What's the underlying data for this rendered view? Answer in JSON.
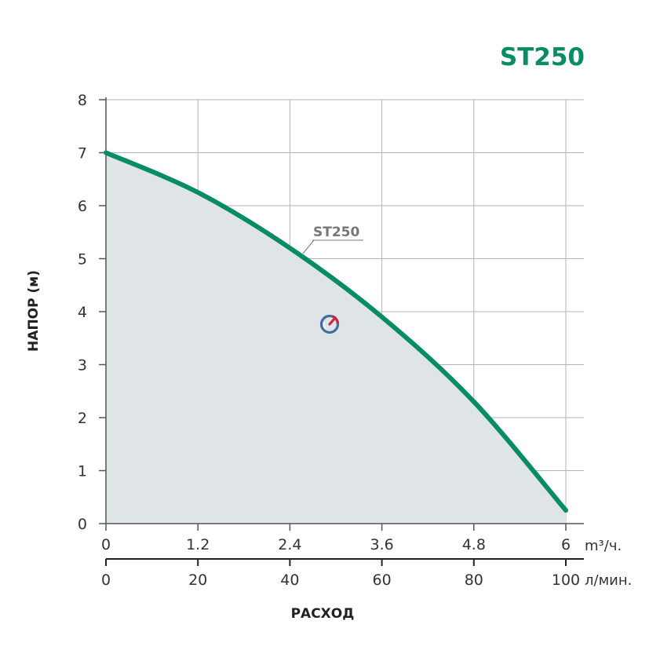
{
  "chart_data": {
    "type": "area",
    "title": "ST250",
    "ylabel": "НАПОР (м)",
    "xlabel": "РАСХОД",
    "ylim": [
      0,
      8
    ],
    "y_ticks": [
      "0",
      "1",
      "2",
      "3",
      "4",
      "5",
      "6",
      "7",
      "8"
    ],
    "x_axes": [
      {
        "unit": "m³/ч.",
        "range": [
          0,
          6
        ],
        "ticks": [
          "0",
          "1.2",
          "2.4",
          "3.6",
          "4.8",
          "6"
        ]
      },
      {
        "unit": "л/мин.",
        "range": [
          0,
          100
        ],
        "ticks": [
          "0",
          "20",
          "40",
          "60",
          "80",
          "100"
        ]
      }
    ],
    "grid": true,
    "series": [
      {
        "name": "ST250",
        "x": [
          0,
          1.2,
          2.4,
          3.6,
          4.8,
          6
        ],
        "y": [
          7.0,
          6.25,
          5.2,
          3.9,
          2.3,
          0.25
        ]
      }
    ],
    "colors": {
      "curve": "#078c65",
      "fill": "#dfe4e6",
      "title": "#078c65",
      "grid": "#b4b4b4",
      "axis": "#555555"
    },
    "icon": "gauge-logo-icon"
  }
}
